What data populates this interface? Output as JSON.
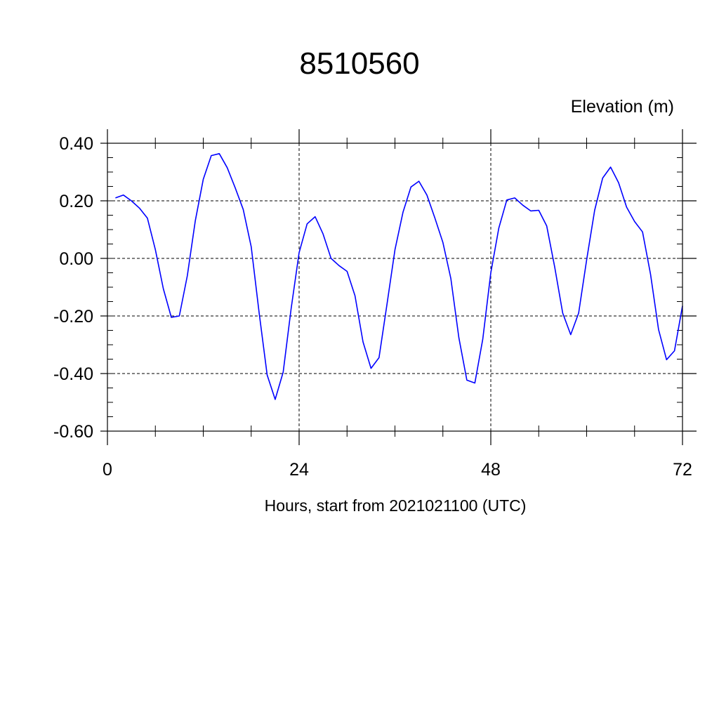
{
  "chart_data": {
    "type": "line",
    "title": "8510560",
    "ylabel": "Elevation (m)",
    "xlabel": "Hours, start from 2021021100 (UTC)",
    "xlim": [
      0,
      72
    ],
    "ylim": [
      -0.6,
      0.4
    ],
    "x_ticks": [
      0,
      24,
      48,
      72
    ],
    "x_tick_labels": [
      "0",
      "24",
      "48",
      "72"
    ],
    "y_ticks": [
      0.4,
      0.2,
      0.0,
      -0.2,
      -0.4,
      -0.6
    ],
    "y_tick_labels": [
      "0.40",
      "0.20",
      "0.00",
      "-0.20",
      "-0.40",
      "-0.60"
    ],
    "grid": true,
    "series": [
      {
        "color": "#0000ff",
        "x": [
          1,
          2,
          3,
          4,
          5,
          6,
          7,
          8,
          9,
          10,
          11,
          12,
          13,
          14,
          15,
          16,
          17,
          18,
          19,
          20,
          21,
          22,
          23,
          24,
          25,
          26,
          27,
          28,
          29,
          30,
          31,
          32,
          33,
          34,
          35,
          36,
          37,
          38,
          39,
          40,
          41,
          42,
          43,
          44,
          45,
          46,
          47,
          48,
          49,
          50,
          51,
          52,
          53,
          54,
          55,
          56,
          57,
          58,
          59,
          60,
          61,
          62,
          63,
          64,
          65,
          66,
          67,
          68,
          69,
          70,
          71,
          72
        ],
        "values": [
          0.21,
          0.22,
          0.2,
          0.175,
          0.14,
          0.03,
          -0.105,
          -0.205,
          -0.2,
          -0.06,
          0.13,
          0.275,
          0.357,
          0.364,
          0.315,
          0.245,
          0.17,
          0.04,
          -0.19,
          -0.405,
          -0.49,
          -0.395,
          -0.175,
          0.02,
          0.12,
          0.145,
          0.085,
          0.0,
          -0.025,
          -0.045,
          -0.13,
          -0.29,
          -0.382,
          -0.345,
          -0.16,
          0.03,
          0.16,
          0.248,
          0.268,
          0.22,
          0.14,
          0.055,
          -0.07,
          -0.275,
          -0.423,
          -0.433,
          -0.28,
          -0.05,
          0.105,
          0.203,
          0.21,
          0.185,
          0.165,
          0.167,
          0.113,
          -0.03,
          -0.19,
          -0.265,
          -0.19,
          -0.005,
          0.167,
          0.279,
          0.317,
          0.263,
          0.178,
          0.128,
          0.092,
          -0.055,
          -0.247,
          -0.352,
          -0.321,
          -0.165
        ]
      }
    ]
  }
}
